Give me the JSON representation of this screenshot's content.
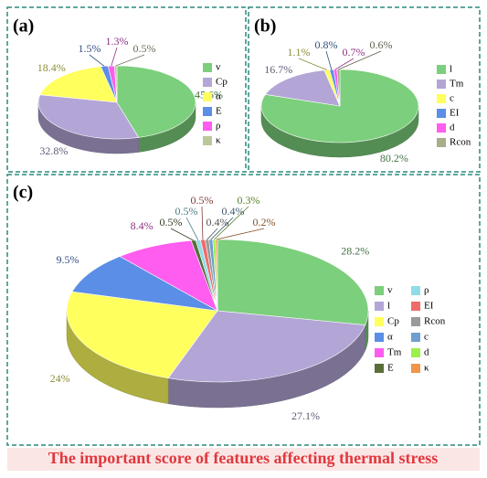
{
  "caption": "The important score of features affecting thermal stress",
  "chart_data": [
    {
      "type": "pie",
      "label": "(a)",
      "categories": [
        "v",
        "Cp",
        "α",
        "E",
        "ρ",
        "κ"
      ],
      "values": [
        45.6,
        32.8,
        18.4,
        1.5,
        1.3,
        0.5
      ],
      "value_labels": [
        "45.6%",
        "32.8%",
        "18.4%",
        "1.5%",
        "1.3%",
        "0.5%"
      ],
      "colors": [
        "#7ccf7c",
        "#b3a6d6",
        "#ffff5e",
        "#5b8ee6",
        "#ff5cf0",
        "#bcc79c"
      ]
    },
    {
      "type": "pie",
      "label": "(b)",
      "categories": [
        "l",
        "Tm",
        "c",
        "EI",
        "d",
        "Rcon"
      ],
      "values": [
        80.2,
        16.7,
        1.1,
        0.8,
        0.7,
        0.6
      ],
      "value_labels": [
        "80.2%",
        "16.7%",
        "1.1%",
        "0.8%",
        "0.7%",
        "0.6%"
      ],
      "colors": [
        "#7ccf7c",
        "#b3a6d6",
        "#ffff5e",
        "#5b8ee6",
        "#ff5cf0",
        "#a8ad8a"
      ]
    },
    {
      "type": "pie",
      "label": "(c)",
      "categories": [
        "v",
        "l",
        "Cp",
        "α",
        "Tm",
        "E",
        "ρ",
        "EI",
        "Rcon",
        "c",
        "d",
        "κ"
      ],
      "values": [
        28.2,
        27.1,
        24,
        9.5,
        8.4,
        0.5,
        0.5,
        0.5,
        0.4,
        0.4,
        0.3,
        0.2
      ],
      "value_labels": [
        "28.2%",
        "27.1%",
        "24%",
        "9.5%",
        "8.4%",
        "0.5%",
        "0.5%",
        "0.5%",
        "0.4%",
        "0.4%",
        "0.3%",
        "0.2%"
      ],
      "colors": [
        "#7ccf7c",
        "#b3a6d6",
        "#ffff5e",
        "#5b8ee6",
        "#ff5cf0",
        "#5a6e3a",
        "#8fdde8",
        "#f06a6a",
        "#9a9a9a",
        "#6f9fcf",
        "#9cf04a",
        "#f0954a"
      ]
    }
  ]
}
